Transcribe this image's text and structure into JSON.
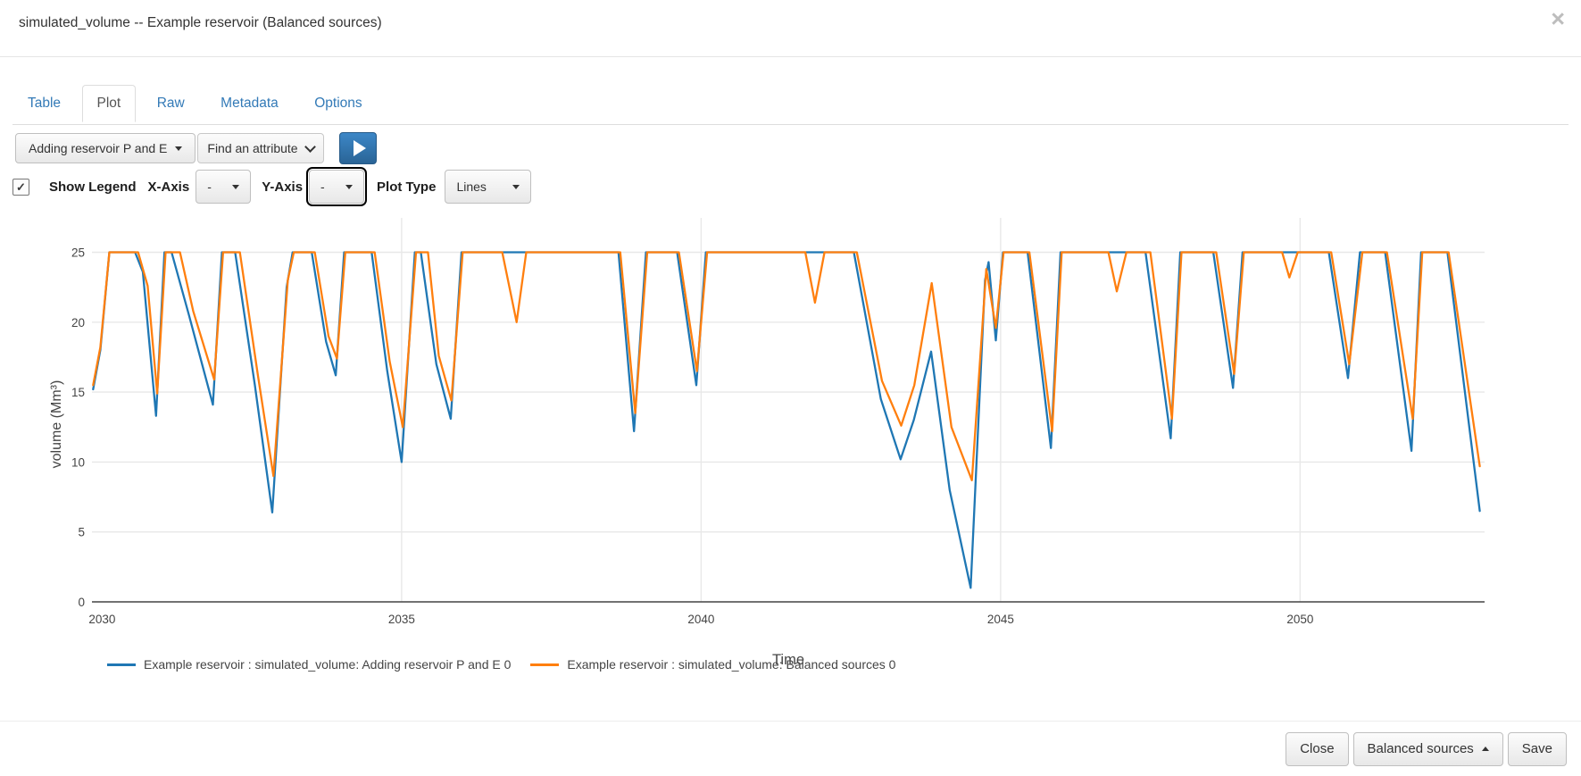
{
  "modal": {
    "title": "simulated_volume -- Example reservoir (Balanced sources)",
    "close_icon": "×"
  },
  "tabs": {
    "items": [
      {
        "label": "Table",
        "active": false
      },
      {
        "label": "Plot",
        "active": true
      },
      {
        "label": "Raw",
        "active": false
      },
      {
        "label": "Metadata",
        "active": false
      },
      {
        "label": "Options",
        "active": false
      }
    ]
  },
  "toolbar": {
    "scenario_button": "Adding reservoir P and E",
    "attribute_select": "Find an attribute",
    "play_icon": "play"
  },
  "controls": {
    "show_legend_label": "Show Legend",
    "show_legend_checked": true,
    "checkmark": "✓",
    "x_axis_label": "X-Axis",
    "x_axis_value": "-",
    "y_axis_label": "Y-Axis",
    "y_axis_value": "-",
    "plot_type_label": "Plot Type",
    "plot_type_value": "Lines"
  },
  "footer": {
    "close_label": "Close",
    "scenario_label": "Balanced sources",
    "save_label": "Save"
  },
  "chart_data": {
    "type": "line",
    "xlabel": "Time",
    "ylabel": "volume (Mm³)",
    "x_ticks": [
      2030,
      2035,
      2040,
      2045,
      2050
    ],
    "y_ticks": [
      0,
      5,
      10,
      15,
      20,
      25
    ],
    "xlim": [
      2029.83,
      2053.08
    ],
    "ylim": [
      0,
      27.7
    ],
    "grid": true,
    "legend_position": "bottom",
    "grid_color": "#e8e8e8",
    "axis_color": "#444444",
    "series": [
      {
        "name": "Example reservoir : simulated_volume: Adding reservoir P and E 0",
        "color": "#1f77b4",
        "points": [
          [
            2029.85,
            15.2
          ],
          [
            2029.97,
            18.0
          ],
          [
            2030.12,
            25
          ],
          [
            2030.55,
            25
          ],
          [
            2030.68,
            23.6
          ],
          [
            2030.9,
            13.3
          ],
          [
            2031.04,
            25
          ],
          [
            2031.16,
            25
          ],
          [
            2031.45,
            20.5
          ],
          [
            2031.85,
            14.1
          ],
          [
            2032.0,
            25
          ],
          [
            2032.22,
            25
          ],
          [
            2032.55,
            15.5
          ],
          [
            2032.84,
            6.4
          ],
          [
            2033.08,
            22.5
          ],
          [
            2033.18,
            25
          ],
          [
            2033.5,
            25
          ],
          [
            2033.74,
            18.6
          ],
          [
            2033.9,
            16.2
          ],
          [
            2034.04,
            25
          ],
          [
            2034.5,
            25
          ],
          [
            2034.76,
            16.5
          ],
          [
            2035.0,
            10.0
          ],
          [
            2035.22,
            25
          ],
          [
            2035.32,
            25
          ],
          [
            2035.58,
            17.0
          ],
          [
            2035.82,
            13.1
          ],
          [
            2036.0,
            25
          ],
          [
            2038.62,
            25
          ],
          [
            2038.88,
            12.2
          ],
          [
            2039.08,
            25
          ],
          [
            2039.6,
            25
          ],
          [
            2039.92,
            15.5
          ],
          [
            2040.08,
            25
          ],
          [
            2042.55,
            25
          ],
          [
            2043.0,
            14.5
          ],
          [
            2043.33,
            10.2
          ],
          [
            2043.55,
            13.0
          ],
          [
            2043.84,
            17.9
          ],
          [
            2044.15,
            8.0
          ],
          [
            2044.5,
            1.0
          ],
          [
            2044.74,
            23.0
          ],
          [
            2044.8,
            24.3
          ],
          [
            2044.92,
            18.7
          ],
          [
            2045.04,
            25
          ],
          [
            2045.45,
            25
          ],
          [
            2045.84,
            11.0
          ],
          [
            2046.0,
            25
          ],
          [
            2047.42,
            25
          ],
          [
            2047.84,
            11.7
          ],
          [
            2048.0,
            25
          ],
          [
            2048.55,
            25
          ],
          [
            2048.88,
            15.3
          ],
          [
            2049.04,
            25
          ],
          [
            2050.48,
            25
          ],
          [
            2050.8,
            16.0
          ],
          [
            2051.0,
            25
          ],
          [
            2051.42,
            25
          ],
          [
            2051.86,
            10.8
          ],
          [
            2052.02,
            25
          ],
          [
            2052.46,
            25
          ],
          [
            2053.0,
            6.5
          ]
        ]
      },
      {
        "name": "Example reservoir : simulated_volume: Balanced sources 0",
        "color": "#ff7f0e",
        "points": [
          [
            2029.85,
            15.5
          ],
          [
            2029.97,
            18.2
          ],
          [
            2030.12,
            25
          ],
          [
            2030.6,
            25
          ],
          [
            2030.76,
            22.6
          ],
          [
            2030.92,
            14.9
          ],
          [
            2031.06,
            25
          ],
          [
            2031.3,
            25
          ],
          [
            2031.52,
            20.8
          ],
          [
            2031.87,
            15.9
          ],
          [
            2032.02,
            25
          ],
          [
            2032.3,
            25
          ],
          [
            2032.6,
            16.2
          ],
          [
            2032.86,
            9.0
          ],
          [
            2033.1,
            23.0
          ],
          [
            2033.2,
            25
          ],
          [
            2033.55,
            25
          ],
          [
            2033.78,
            19.0
          ],
          [
            2033.92,
            17.4
          ],
          [
            2034.06,
            25
          ],
          [
            2034.55,
            25
          ],
          [
            2034.8,
            17.2
          ],
          [
            2035.02,
            12.5
          ],
          [
            2035.24,
            25
          ],
          [
            2035.44,
            25
          ],
          [
            2035.62,
            17.6
          ],
          [
            2035.83,
            14.4
          ],
          [
            2036.02,
            25
          ],
          [
            2036.68,
            25
          ],
          [
            2036.92,
            20.0
          ],
          [
            2037.08,
            25
          ],
          [
            2038.65,
            25
          ],
          [
            2038.9,
            13.5
          ],
          [
            2039.1,
            25
          ],
          [
            2039.63,
            25
          ],
          [
            2039.93,
            16.5
          ],
          [
            2040.1,
            25
          ],
          [
            2041.74,
            25
          ],
          [
            2041.9,
            21.4
          ],
          [
            2042.06,
            25
          ],
          [
            2042.6,
            25
          ],
          [
            2043.02,
            15.8
          ],
          [
            2043.34,
            12.6
          ],
          [
            2043.56,
            15.5
          ],
          [
            2043.85,
            22.8
          ],
          [
            2044.18,
            12.5
          ],
          [
            2044.52,
            8.7
          ],
          [
            2044.76,
            23.8
          ],
          [
            2044.92,
            19.6
          ],
          [
            2045.05,
            25
          ],
          [
            2045.48,
            25
          ],
          [
            2045.86,
            12.2
          ],
          [
            2046.02,
            25
          ],
          [
            2046.8,
            25
          ],
          [
            2046.94,
            22.2
          ],
          [
            2047.1,
            25
          ],
          [
            2047.5,
            25
          ],
          [
            2047.86,
            13.1
          ],
          [
            2048.02,
            25
          ],
          [
            2048.6,
            25
          ],
          [
            2048.9,
            16.3
          ],
          [
            2049.06,
            25
          ],
          [
            2049.7,
            25
          ],
          [
            2049.82,
            23.2
          ],
          [
            2049.96,
            25
          ],
          [
            2050.52,
            25
          ],
          [
            2050.82,
            17.0
          ],
          [
            2051.04,
            25
          ],
          [
            2051.45,
            25
          ],
          [
            2051.88,
            13.1
          ],
          [
            2052.04,
            25
          ],
          [
            2052.48,
            25
          ],
          [
            2053.0,
            9.7
          ]
        ]
      }
    ]
  }
}
